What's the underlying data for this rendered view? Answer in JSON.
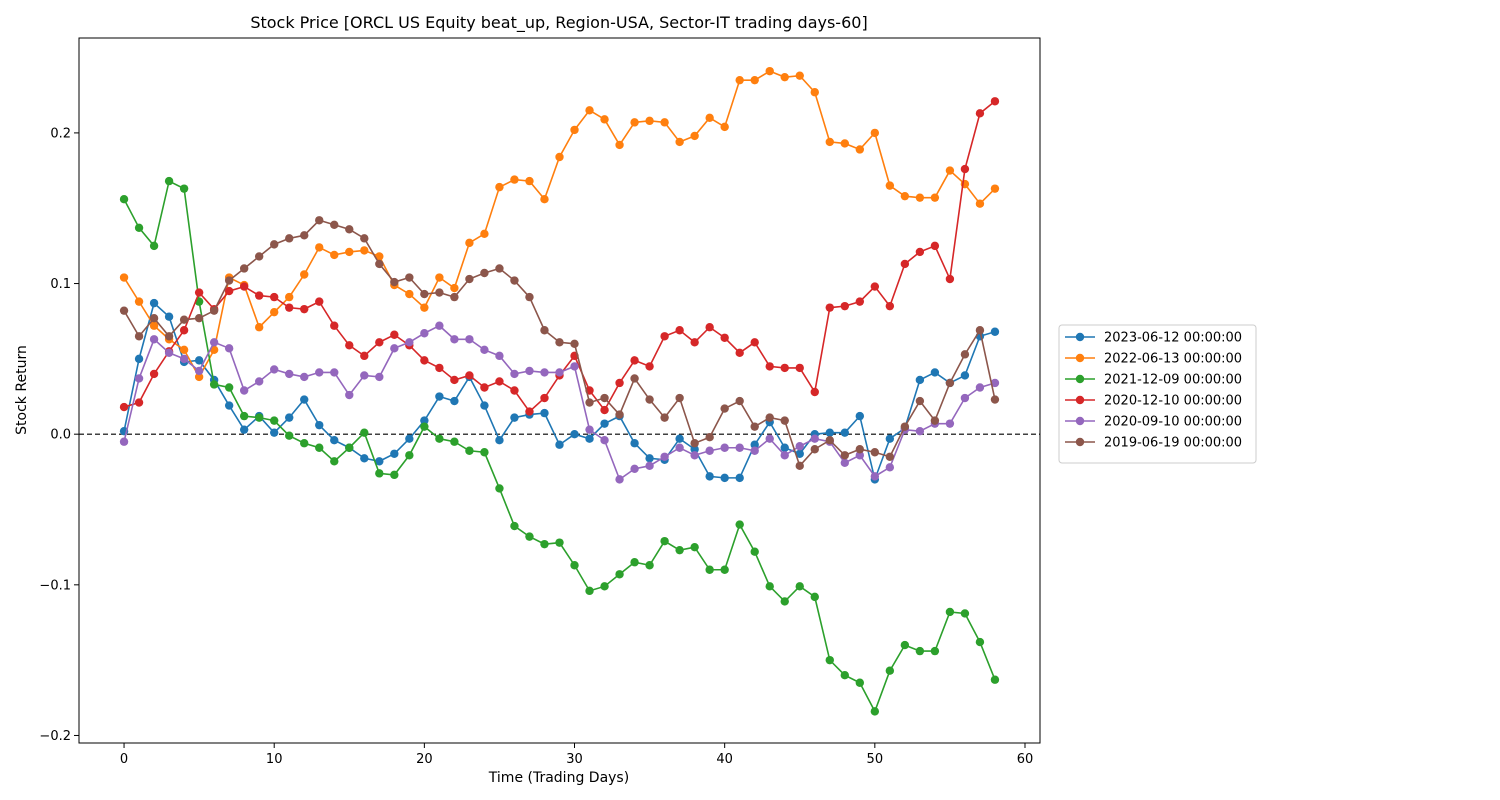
{
  "chart_data": {
    "type": "line",
    "title": "Stock Price [ORCL US Equity beat_up, Region-USA, Sector-IT trading days-60]",
    "xlabel": "Time (Trading Days)",
    "ylabel": "Stock Return",
    "xlim": [
      -3,
      61
    ],
    "ylim": [
      -0.205,
      0.263
    ],
    "xticks": [
      0,
      10,
      20,
      30,
      40,
      50,
      60
    ],
    "yticks": [
      -0.2,
      -0.1,
      0.0,
      0.1,
      0.2
    ],
    "ytick_labels": [
      "−0.2",
      "−0.1",
      "0.0",
      "0.1",
      "0.2"
    ],
    "reference_line": {
      "y": 0,
      "style": "dashed",
      "color": "#000000"
    },
    "legend_position": "right-outside",
    "series": [
      {
        "name": "2023-06-12 00:00:00",
        "color": "#1f77b4",
        "values": [
          0.002,
          0.05,
          0.087,
          0.078,
          0.048,
          0.049,
          0.036,
          0.019,
          0.003,
          0.012,
          0.001,
          0.011,
          0.023,
          0.006,
          -0.004,
          -0.009,
          -0.016,
          -0.018,
          -0.013,
          -0.003,
          0.009,
          0.025,
          0.022,
          0.038,
          0.019,
          -0.004,
          0.011,
          0.013,
          0.014,
          -0.007,
          0.0,
          -0.003,
          0.007,
          0.012,
          -0.006,
          -0.016,
          -0.017,
          -0.003,
          -0.01,
          -0.028,
          -0.029,
          -0.029,
          -0.007,
          0.008,
          -0.009,
          -0.013,
          0.0,
          0.001,
          0.001,
          0.012,
          -0.03,
          -0.003,
          0.004,
          0.036,
          0.041,
          0.034,
          0.039,
          0.065,
          0.068
        ]
      },
      {
        "name": "2022-06-13 00:00:00",
        "color": "#ff7f0e",
        "values": [
          0.104,
          0.088,
          0.072,
          0.063,
          0.056,
          0.038,
          0.056,
          0.104,
          0.099,
          0.071,
          0.081,
          0.091,
          0.106,
          0.124,
          0.119,
          0.121,
          0.122,
          0.118,
          0.099,
          0.093,
          0.084,
          0.104,
          0.097,
          0.127,
          0.133,
          0.164,
          0.169,
          0.168,
          0.156,
          0.184,
          0.202,
          0.215,
          0.209,
          0.192,
          0.207,
          0.208,
          0.207,
          0.194,
          0.198,
          0.21,
          0.204,
          0.235,
          0.235,
          0.241,
          0.237,
          0.238,
          0.227,
          0.194,
          0.193,
          0.189,
          0.2,
          0.165,
          0.158,
          0.157,
          0.157,
          0.175,
          0.166,
          0.153,
          0.163
        ]
      },
      {
        "name": "2021-12-09 00:00:00",
        "color": "#2ca02c",
        "values": [
          0.156,
          0.137,
          0.125,
          0.168,
          0.163,
          0.088,
          0.033,
          0.031,
          0.012,
          0.011,
          0.009,
          -0.001,
          -0.006,
          -0.009,
          -0.018,
          -0.009,
          0.001,
          -0.026,
          -0.027,
          -0.014,
          0.005,
          -0.003,
          -0.005,
          -0.011,
          -0.012,
          -0.036,
          -0.061,
          -0.068,
          -0.073,
          -0.072,
          -0.087,
          -0.104,
          -0.101,
          -0.093,
          -0.085,
          -0.087,
          -0.071,
          -0.077,
          -0.075,
          -0.09,
          -0.09,
          -0.06,
          -0.078,
          -0.101,
          -0.111,
          -0.101,
          -0.108,
          -0.15,
          -0.16,
          -0.165,
          -0.184,
          -0.157,
          -0.14,
          -0.144,
          -0.144,
          -0.118,
          -0.119,
          -0.138,
          -0.163
        ]
      },
      {
        "name": "2020-12-10 00:00:00",
        "color": "#d62728",
        "values": [
          0.018,
          0.021,
          0.04,
          0.055,
          0.069,
          0.094,
          0.083,
          0.095,
          0.098,
          0.092,
          0.091,
          0.084,
          0.083,
          0.088,
          0.072,
          0.059,
          0.052,
          0.061,
          0.066,
          0.059,
          0.049,
          0.044,
          0.036,
          0.039,
          0.031,
          0.035,
          0.029,
          0.015,
          0.024,
          0.039,
          0.052,
          0.029,
          0.016,
          0.034,
          0.049,
          0.045,
          0.065,
          0.069,
          0.061,
          0.071,
          0.064,
          0.054,
          0.061,
          0.045,
          0.044,
          0.044,
          0.028,
          0.084,
          0.085,
          0.088,
          0.098,
          0.085,
          0.113,
          0.121,
          0.125,
          0.103,
          0.176,
          0.213,
          0.221
        ]
      },
      {
        "name": "2020-09-10 00:00:00",
        "color": "#9467bd",
        "values": [
          -0.005,
          0.037,
          0.063,
          0.054,
          0.05,
          0.042,
          0.061,
          0.057,
          0.029,
          0.035,
          0.043,
          0.04,
          0.038,
          0.041,
          0.041,
          0.026,
          0.039,
          0.038,
          0.057,
          0.061,
          0.067,
          0.072,
          0.063,
          0.063,
          0.056,
          0.052,
          0.04,
          0.042,
          0.041,
          0.041,
          0.045,
          0.003,
          -0.004,
          -0.03,
          -0.023,
          -0.021,
          -0.015,
          -0.009,
          -0.014,
          -0.011,
          -0.009,
          -0.009,
          -0.011,
          -0.003,
          -0.014,
          -0.008,
          -0.003,
          -0.005,
          -0.019,
          -0.014,
          -0.028,
          -0.022,
          0.003,
          0.002,
          0.007,
          0.007,
          0.024,
          0.031,
          0.034
        ]
      },
      {
        "name": "2019-06-19 00:00:00",
        "color": "#8c564b",
        "values": [
          0.082,
          0.065,
          0.077,
          0.065,
          0.076,
          0.077,
          0.082,
          0.102,
          0.11,
          0.118,
          0.126,
          0.13,
          0.132,
          0.142,
          0.139,
          0.136,
          0.13,
          0.113,
          0.101,
          0.104,
          0.093,
          0.094,
          0.091,
          0.103,
          0.107,
          0.11,
          0.102,
          0.091,
          0.069,
          0.061,
          0.06,
          0.021,
          0.024,
          0.013,
          0.037,
          0.023,
          0.011,
          0.024,
          -0.006,
          -0.002,
          0.017,
          0.022,
          0.005,
          0.011,
          0.009,
          -0.021,
          -0.01,
          -0.004,
          -0.014,
          -0.01,
          -0.012,
          -0.015,
          0.005,
          0.022,
          0.009,
          0.034,
          0.053,
          0.069,
          0.023
        ]
      }
    ]
  }
}
